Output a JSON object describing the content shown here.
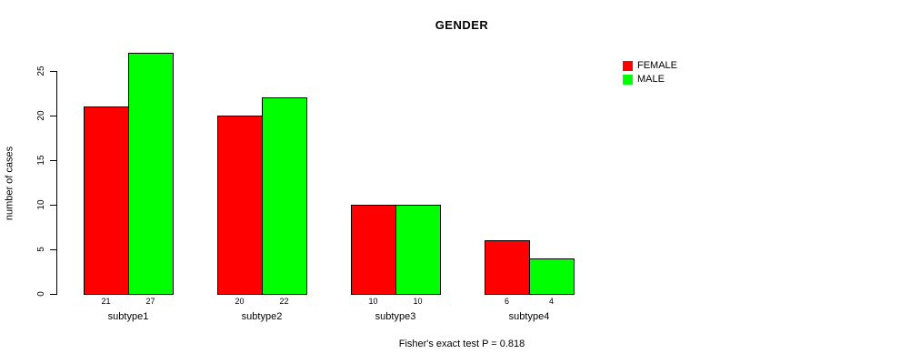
{
  "chart_data": {
    "type": "bar",
    "title": "GENDER",
    "categories": [
      "subtype1",
      "subtype2",
      "subtype3",
      "subtype4"
    ],
    "series": [
      {
        "name": "FEMALE",
        "color": "#ff0000",
        "values": [
          21,
          20,
          10,
          6
        ]
      },
      {
        "name": "MALE",
        "color": "#00ff00",
        "values": [
          27,
          22,
          10,
          4
        ]
      }
    ],
    "ylabel": "number of cases",
    "yticks": [
      0,
      5,
      10,
      15,
      20,
      25
    ],
    "ylim": [
      0,
      27
    ],
    "bar_value_labels": true,
    "grid": false,
    "legend_position": "top-right",
    "annotation": "Fisher's exact test P = 0.818",
    "bar_border_color": "#000000",
    "axis_color": "#000000"
  }
}
